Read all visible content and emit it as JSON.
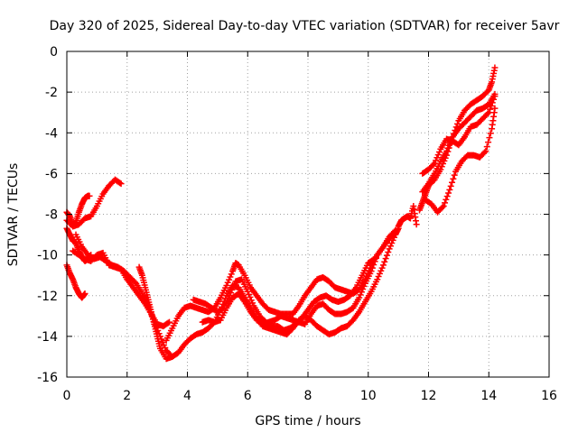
{
  "chart_data": {
    "type": "scatter",
    "title": "Day 320 of 2025, Sidereal Day-to-day VTEC variation (SDTVAR) for receiver 5avr",
    "xlabel": "GPS time / hours",
    "ylabel": "SDTVAR / TECUs",
    "xlim": [
      0,
      16
    ],
    "ylim": [
      -16,
      0
    ],
    "xticks": [
      "0",
      "2",
      "4",
      "6",
      "8",
      "10",
      "12",
      "14",
      "16"
    ],
    "yticks": [
      "0",
      "-2",
      "-4",
      "-6",
      "-8",
      "-10",
      "-12",
      "-14",
      "-16"
    ],
    "grid": true,
    "marker": "+",
    "color": "#ff0000",
    "series": [
      {
        "points": [
          [
            0.0,
            -7.9
          ],
          [
            0.1,
            -8.1
          ],
          [
            0.2,
            -8.5
          ],
          [
            0.3,
            -8.4
          ],
          [
            0.4,
            -7.9
          ],
          [
            0.5,
            -7.5
          ],
          [
            0.6,
            -7.2
          ],
          [
            0.7,
            -7.1
          ],
          [
            0.75,
            -7.1
          ]
        ]
      },
      {
        "points": [
          [
            0.0,
            -8.7
          ],
          [
            0.1,
            -9.0
          ],
          [
            0.2,
            -9.3
          ],
          [
            0.3,
            -9.4
          ],
          [
            0.4,
            -9.8
          ],
          [
            0.5,
            -10.1
          ],
          [
            0.6,
            -10.3
          ],
          [
            0.7,
            -10.2
          ],
          [
            0.8,
            -10.0
          ]
        ]
      },
      {
        "points": [
          [
            0.0,
            -10.5
          ],
          [
            0.1,
            -10.9
          ],
          [
            0.2,
            -11.2
          ],
          [
            0.3,
            -11.6
          ],
          [
            0.4,
            -11.9
          ],
          [
            0.5,
            -12.1
          ],
          [
            0.6,
            -11.9
          ]
        ]
      },
      {
        "points": [
          [
            0.0,
            -8.3
          ],
          [
            0.2,
            -8.6
          ],
          [
            0.4,
            -8.5
          ],
          [
            0.6,
            -8.2
          ],
          [
            0.8,
            -8.1
          ],
          [
            1.0,
            -7.6
          ],
          [
            1.2,
            -7.0
          ],
          [
            1.4,
            -6.6
          ],
          [
            1.6,
            -6.3
          ],
          [
            1.8,
            -6.5
          ]
        ]
      },
      {
        "points": [
          [
            0.3,
            -9.0
          ],
          [
            0.5,
            -9.6
          ],
          [
            0.7,
            -10.0
          ],
          [
            0.9,
            -10.2
          ],
          [
            1.1,
            -10.1
          ],
          [
            1.3,
            -10.3
          ],
          [
            1.5,
            -10.5
          ],
          [
            1.7,
            -10.6
          ],
          [
            1.9,
            -10.8
          ],
          [
            2.1,
            -11.1
          ],
          [
            2.3,
            -11.4
          ],
          [
            2.5,
            -11.9
          ],
          [
            2.7,
            -12.5
          ],
          [
            2.9,
            -13.3
          ],
          [
            3.1,
            -14.0
          ],
          [
            3.3,
            -14.7
          ],
          [
            3.5,
            -15.0
          ],
          [
            3.7,
            -14.8
          ],
          [
            3.9,
            -14.4
          ],
          [
            4.1,
            -14.1
          ],
          [
            4.3,
            -13.9
          ],
          [
            4.5,
            -13.8
          ],
          [
            4.7,
            -13.6
          ],
          [
            4.9,
            -13.3
          ],
          [
            5.1,
            -12.7
          ],
          [
            5.3,
            -12.0
          ],
          [
            5.5,
            -11.5
          ],
          [
            5.7,
            -11.6
          ],
          [
            5.9,
            -12.1
          ],
          [
            6.1,
            -12.6
          ],
          [
            6.3,
            -13.1
          ],
          [
            6.5,
            -13.5
          ],
          [
            6.7,
            -13.6
          ],
          [
            6.9,
            -13.7
          ],
          [
            7.1,
            -13.8
          ],
          [
            7.3,
            -13.9
          ],
          [
            7.5,
            -13.6
          ],
          [
            7.7,
            -13.2
          ],
          [
            7.9,
            -13.0
          ],
          [
            8.1,
            -13.2
          ],
          [
            8.3,
            -13.5
          ],
          [
            8.5,
            -13.7
          ],
          [
            8.7,
            -13.9
          ],
          [
            8.9,
            -13.8
          ],
          [
            9.1,
            -13.6
          ],
          [
            9.3,
            -13.5
          ],
          [
            9.5,
            -13.2
          ],
          [
            9.7,
            -12.8
          ],
          [
            9.9,
            -12.3
          ],
          [
            10.1,
            -11.8
          ],
          [
            10.3,
            -11.2
          ],
          [
            10.5,
            -10.5
          ],
          [
            10.7,
            -9.7
          ],
          [
            10.9,
            -9.0
          ],
          [
            11.0,
            -8.7
          ]
        ]
      },
      {
        "points": [
          [
            0.2,
            -9.8
          ],
          [
            0.4,
            -10.0
          ],
          [
            0.6,
            -10.2
          ],
          [
            0.8,
            -10.3
          ],
          [
            1.0,
            -10.0
          ],
          [
            1.2,
            -9.9
          ],
          [
            1.4,
            -10.5
          ],
          [
            1.6,
            -10.6
          ],
          [
            1.8,
            -10.7
          ],
          [
            2.0,
            -11.2
          ],
          [
            2.2,
            -11.6
          ],
          [
            2.4,
            -12.0
          ],
          [
            2.6,
            -12.4
          ],
          [
            2.8,
            -12.9
          ],
          [
            3.0,
            -13.4
          ],
          [
            3.2,
            -13.5
          ],
          [
            3.4,
            -13.3
          ]
        ]
      },
      {
        "points": [
          [
            2.4,
            -10.6
          ],
          [
            2.5,
            -11.0
          ],
          [
            2.6,
            -11.6
          ],
          [
            2.7,
            -12.2
          ],
          [
            2.8,
            -12.8
          ],
          [
            2.9,
            -13.4
          ],
          [
            3.0,
            -14.0
          ],
          [
            3.1,
            -14.6
          ],
          [
            3.3,
            -15.1
          ],
          [
            3.5,
            -15.0
          ]
        ]
      },
      {
        "points": [
          [
            3.3,
            -14.2
          ],
          [
            3.5,
            -13.6
          ],
          [
            3.7,
            -13.0
          ],
          [
            3.9,
            -12.6
          ],
          [
            4.1,
            -12.5
          ],
          [
            4.3,
            -12.6
          ],
          [
            4.5,
            -12.7
          ],
          [
            4.7,
            -12.8
          ],
          [
            4.9,
            -12.6
          ],
          [
            5.1,
            -12.1
          ],
          [
            5.3,
            -11.5
          ],
          [
            5.5,
            -10.8
          ],
          [
            5.6,
            -10.4
          ],
          [
            5.7,
            -10.5
          ],
          [
            5.9,
            -11.0
          ],
          [
            6.1,
            -11.6
          ],
          [
            6.3,
            -12.0
          ],
          [
            6.5,
            -12.4
          ],
          [
            6.7,
            -12.7
          ],
          [
            6.9,
            -12.8
          ],
          [
            7.1,
            -12.9
          ],
          [
            7.3,
            -12.9
          ],
          [
            7.5,
            -12.9
          ],
          [
            7.7,
            -12.5
          ],
          [
            7.9,
            -12.0
          ],
          [
            8.1,
            -11.6
          ],
          [
            8.3,
            -11.2
          ],
          [
            8.5,
            -11.1
          ],
          [
            8.7,
            -11.3
          ],
          [
            8.9,
            -11.6
          ],
          [
            9.1,
            -11.7
          ],
          [
            9.3,
            -11.8
          ],
          [
            9.5,
            -11.9
          ],
          [
            9.7,
            -11.7
          ],
          [
            9.9,
            -11.2
          ],
          [
            10.1,
            -10.5
          ],
          [
            10.3,
            -10.0
          ],
          [
            10.5,
            -9.6
          ],
          [
            10.7,
            -9.1
          ],
          [
            10.9,
            -8.8
          ]
        ]
      },
      {
        "points": [
          [
            4.2,
            -12.2
          ],
          [
            4.4,
            -12.3
          ],
          [
            4.6,
            -12.4
          ],
          [
            4.8,
            -12.6
          ],
          [
            5.0,
            -12.8
          ],
          [
            5.2,
            -12.6
          ],
          [
            5.4,
            -12.0
          ],
          [
            5.6,
            -11.3
          ],
          [
            5.8,
            -11.2
          ],
          [
            6.0,
            -11.8
          ],
          [
            6.2,
            -12.5
          ],
          [
            6.4,
            -13.0
          ],
          [
            6.6,
            -13.3
          ],
          [
            6.8,
            -13.5
          ],
          [
            7.0,
            -13.5
          ],
          [
            7.2,
            -13.7
          ],
          [
            7.4,
            -13.6
          ],
          [
            7.6,
            -13.4
          ],
          [
            7.8,
            -13.1
          ],
          [
            8.0,
            -12.7
          ],
          [
            8.2,
            -12.3
          ],
          [
            8.4,
            -12.1
          ],
          [
            8.6,
            -12.0
          ],
          [
            8.8,
            -12.2
          ],
          [
            9.0,
            -12.3
          ],
          [
            9.2,
            -12.2
          ],
          [
            9.4,
            -12.0
          ],
          [
            9.6,
            -11.6
          ],
          [
            9.8,
            -11.0
          ],
          [
            10.0,
            -10.4
          ],
          [
            10.2,
            -10.2
          ]
        ]
      },
      {
        "points": [
          [
            4.5,
            -13.3
          ],
          [
            4.7,
            -13.2
          ],
          [
            4.9,
            -13.3
          ],
          [
            5.1,
            -13.2
          ],
          [
            5.3,
            -12.6
          ],
          [
            5.5,
            -12.1
          ],
          [
            5.7,
            -11.9
          ],
          [
            5.9,
            -12.3
          ],
          [
            6.1,
            -12.8
          ],
          [
            6.3,
            -13.2
          ],
          [
            6.5,
            -13.4
          ],
          [
            6.7,
            -13.3
          ],
          [
            6.9,
            -13.2
          ],
          [
            7.1,
            -13.0
          ],
          [
            7.3,
            -13.1
          ],
          [
            7.5,
            -13.2
          ],
          [
            7.7,
            -13.3
          ],
          [
            7.9,
            -13.4
          ],
          [
            8.1,
            -12.9
          ],
          [
            8.3,
            -12.5
          ],
          [
            8.5,
            -12.4
          ],
          [
            8.7,
            -12.7
          ],
          [
            8.9,
            -12.9
          ],
          [
            9.1,
            -12.9
          ],
          [
            9.3,
            -12.8
          ],
          [
            9.5,
            -12.6
          ],
          [
            9.7,
            -12.1
          ],
          [
            9.9,
            -11.4
          ],
          [
            10.1,
            -10.8
          ],
          [
            10.3,
            -10.0
          ],
          [
            10.5,
            -9.6
          ],
          [
            10.7,
            -9.2
          ],
          [
            10.9,
            -8.9
          ]
        ]
      },
      {
        "points": [
          [
            11.0,
            -8.6
          ],
          [
            11.1,
            -8.3
          ],
          [
            11.2,
            -8.2
          ],
          [
            11.3,
            -8.1
          ],
          [
            11.4,
            -8.2
          ],
          [
            11.5,
            -7.6
          ],
          [
            11.6,
            -8.5
          ]
        ]
      },
      {
        "points": [
          [
            11.7,
            -7.8
          ],
          [
            11.8,
            -7.4
          ],
          [
            11.9,
            -7.0
          ],
          [
            12.0,
            -6.6
          ],
          [
            12.2,
            -6.3
          ],
          [
            12.4,
            -5.8
          ],
          [
            12.6,
            -5.1
          ],
          [
            12.8,
            -4.2
          ],
          [
            13.0,
            -3.4
          ],
          [
            13.2,
            -2.9
          ],
          [
            13.4,
            -2.6
          ],
          [
            13.6,
            -2.4
          ],
          [
            13.8,
            -2.2
          ],
          [
            14.0,
            -1.9
          ],
          [
            14.1,
            -1.5
          ],
          [
            14.2,
            -0.8
          ]
        ]
      },
      {
        "points": [
          [
            11.8,
            -6.9
          ],
          [
            12.0,
            -6.5
          ],
          [
            12.2,
            -6.0
          ],
          [
            12.4,
            -5.4
          ],
          [
            12.6,
            -4.9
          ],
          [
            12.8,
            -4.2
          ],
          [
            13.0,
            -3.8
          ],
          [
            13.2,
            -3.5
          ],
          [
            13.4,
            -3.2
          ],
          [
            13.6,
            -2.9
          ],
          [
            13.8,
            -2.8
          ],
          [
            14.0,
            -2.6
          ],
          [
            14.2,
            -2.1
          ]
        ]
      },
      {
        "points": [
          [
            11.9,
            -7.3
          ],
          [
            12.1,
            -7.5
          ],
          [
            12.3,
            -7.9
          ],
          [
            12.5,
            -7.6
          ],
          [
            12.7,
            -6.8
          ],
          [
            12.9,
            -5.9
          ],
          [
            13.1,
            -5.4
          ],
          [
            13.3,
            -5.1
          ],
          [
            13.5,
            -5.1
          ],
          [
            13.7,
            -5.2
          ],
          [
            13.9,
            -4.9
          ],
          [
            14.1,
            -3.8
          ],
          [
            14.2,
            -2.8
          ]
        ]
      },
      {
        "points": [
          [
            11.8,
            -6.0
          ],
          [
            12.0,
            -5.8
          ],
          [
            12.2,
            -5.5
          ],
          [
            12.4,
            -4.8
          ],
          [
            12.6,
            -4.3
          ],
          [
            12.8,
            -4.4
          ],
          [
            13.0,
            -4.6
          ],
          [
            13.2,
            -4.2
          ],
          [
            13.4,
            -3.7
          ],
          [
            13.6,
            -3.6
          ],
          [
            13.8,
            -3.3
          ],
          [
            14.0,
            -3.0
          ],
          [
            14.2,
            -2.2
          ]
        ]
      }
    ]
  }
}
